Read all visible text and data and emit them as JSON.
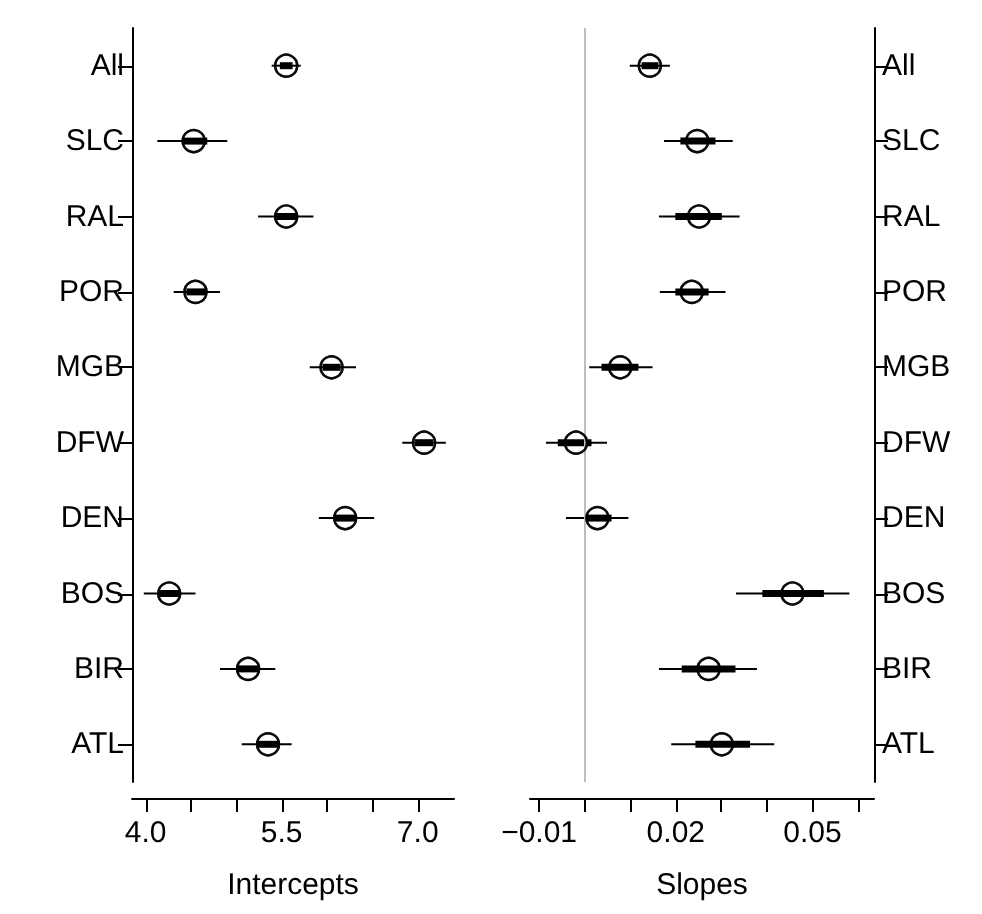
{
  "chart_data": [
    {
      "type": "scatter",
      "orientation": "horizontal",
      "marker": "circle",
      "xlabel": "Intercepts",
      "categories": [
        "All",
        "SLC",
        "RAL",
        "POR",
        "MGB",
        "DFW",
        "DEN",
        "BOS",
        "BIR",
        "ATL"
      ],
      "xlim": [
        3.85,
        7.4
      ],
      "xticks": [
        {
          "value": 4,
          "label": "4.0"
        },
        {
          "value": 4.5,
          "label": null
        },
        {
          "value": 5,
          "label": null
        },
        {
          "value": 5.5,
          "label": "5.5"
        },
        {
          "value": 6,
          "label": null
        },
        {
          "value": 6.5,
          "label": null
        },
        {
          "value": 7,
          "label": "7.0"
        }
      ],
      "grid": false,
      "series": [
        {
          "color": "#000000",
          "values": [
            5.55,
            4.53,
            5.55,
            4.55,
            6.05,
            7.07,
            6.2,
            4.26,
            5.13,
            5.35
          ],
          "errors": [
            [
              5.39,
              5.71
            ],
            [
              4.13,
              4.9
            ],
            [
              5.24,
              5.85
            ],
            [
              4.31,
              4.82
            ],
            [
              5.81,
              6.32
            ],
            [
              6.83,
              7.31
            ],
            [
              5.91,
              6.52
            ],
            [
              3.98,
              4.55
            ],
            [
              4.82,
              5.43
            ],
            [
              5.06,
              5.61
            ]
          ]
        },
        {
          "color": "#000000",
          "values": [
            5.55,
            4.53,
            5.55,
            4.55,
            6.05,
            7.07,
            6.2,
            4.26,
            5.13,
            5.35
          ],
          "errors": [
            [
              5.48,
              5.62
            ],
            [
              4.4,
              4.68
            ],
            [
              5.42,
              5.68
            ],
            [
              4.45,
              4.66
            ],
            [
              5.95,
              6.15
            ],
            [
              6.97,
              7.17
            ],
            [
              6.08,
              6.33
            ],
            [
              4.15,
              4.38
            ],
            [
              5.0,
              5.25
            ],
            [
              5.23,
              5.47
            ]
          ]
        }
      ]
    },
    {
      "type": "scatter",
      "orientation": "horizontal",
      "marker": "circle",
      "xlabel": "Slopes",
      "categories": [
        "All",
        "SLC",
        "RAL",
        "POR",
        "MGB",
        "DFW",
        "DEN",
        "BOS",
        "BIR",
        "ATL"
      ],
      "xlim": [
        -0.012,
        0.0635
      ],
      "xticks": [
        {
          "value": -0.01,
          "label": "−0.01"
        },
        {
          "value": 0,
          "label": null
        },
        {
          "value": 0.01,
          "label": null
        },
        {
          "value": 0.02,
          "label": "0.02"
        },
        {
          "value": 0.03,
          "label": null
        },
        {
          "value": 0.04,
          "label": null
        },
        {
          "value": 0.05,
          "label": "0.05"
        },
        {
          "value": 0.06,
          "label": null
        }
      ],
      "grid": false,
      "ref_lines": [
        {
          "axis": "x",
          "value": 0,
          "color": "#bebebe"
        }
      ],
      "series": [
        {
          "color": "#000000",
          "values": [
            0.0143,
            0.0247,
            0.0251,
            0.0235,
            0.0078,
            -0.0019,
            0.0028,
            0.0456,
            0.0272,
            0.0301
          ],
          "errors": [
            [
              0.0099,
              0.0187
            ],
            [
              0.0174,
              0.0325
            ],
            [
              0.0163,
              0.034
            ],
            [
              0.0165,
              0.0309
            ],
            [
              0.001,
              0.0149
            ],
            [
              -0.0085,
              0.0049
            ],
            [
              -0.0041,
              0.0096
            ],
            [
              0.0332,
              0.0581
            ],
            [
              0.0163,
              0.0378
            ],
            [
              0.019,
              0.0416
            ]
          ]
        },
        {
          "color": "#000000",
          "values": [
            0.0143,
            0.0247,
            0.0251,
            0.0235,
            0.0078,
            -0.0019,
            0.0028,
            0.0456,
            0.0272,
            0.0301
          ],
          "errors": [
            [
              0.0125,
              0.0162
            ],
            [
              0.021,
              0.0287
            ],
            [
              0.0199,
              0.0301
            ],
            [
              0.0199,
              0.0272
            ],
            [
              0.0037,
              0.0118
            ],
            [
              -0.0059,
              0.0015
            ],
            [
              0,
              0.0059
            ],
            [
              0.039,
              0.0525
            ],
            [
              0.0213,
              0.0331
            ],
            [
              0.0243,
              0.0363
            ]
          ]
        }
      ]
    }
  ]
}
